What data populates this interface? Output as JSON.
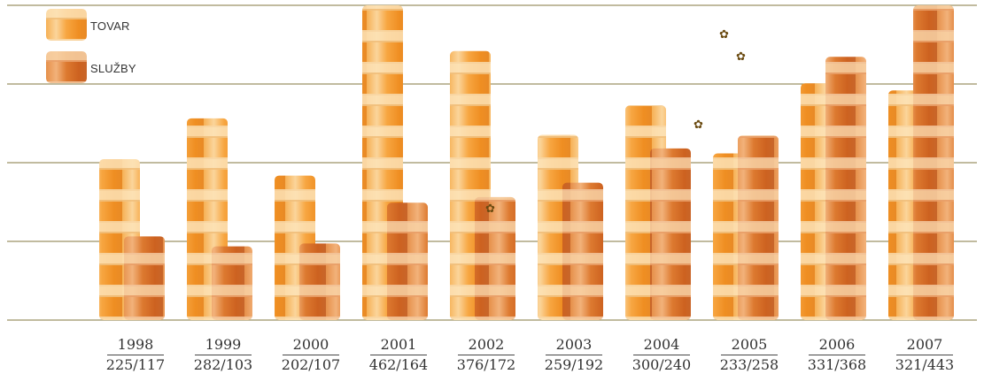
{
  "legend": [
    {
      "label": "TOVAR",
      "color": "#f39a2b"
    },
    {
      "label": "SLUŽBY",
      "color": "#d9722a"
    }
  ],
  "chart_data": {
    "type": "bar",
    "categories": [
      "1998",
      "1999",
      "2000",
      "2001",
      "2002",
      "2003",
      "2004",
      "2005",
      "2006",
      "2007"
    ],
    "category_labels": [
      "225/117",
      "282/103",
      "202/107",
      "462/164",
      "376/172",
      "259/192",
      "300/240",
      "233/258",
      "331/368",
      "321/443"
    ],
    "series": [
      {
        "name": "TOVAR",
        "values": [
          225,
          282,
          202,
          462,
          376,
          259,
          300,
          233,
          331,
          321
        ],
        "color": "#f39a2b"
      },
      {
        "name": "SLUŽBY",
        "values": [
          117,
          103,
          107,
          164,
          172,
          192,
          240,
          258,
          368,
          443
        ],
        "color": "#d9722a"
      }
    ],
    "ylim": [
      0,
      440
    ],
    "grid": true,
    "legend_position": "top-left"
  },
  "decorations": {
    "bee_icon": "bee-icon"
  }
}
